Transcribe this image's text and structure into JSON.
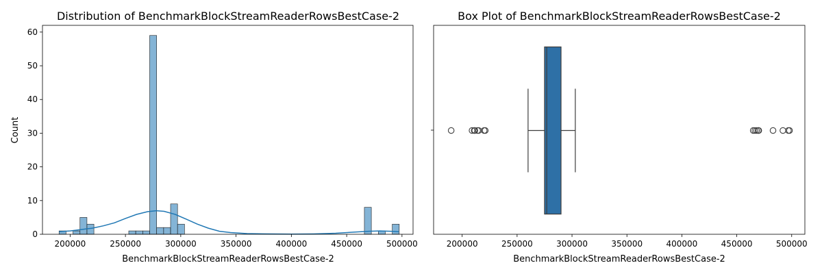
{
  "chart_data": [
    {
      "type": "bar",
      "subtype": "histogram-with-kde",
      "title": "Distribution of BenchmarkBlockStreamReaderRowsBestCase-2",
      "xlabel": "BenchmarkBlockStreamReaderRowsBestCase-2",
      "ylabel": "Count",
      "xlim": [
        175000,
        510000
      ],
      "ylim": [
        0,
        62
      ],
      "xticks": [
        "200000",
        "250000",
        "300000",
        "350000",
        "400000",
        "450000",
        "500000"
      ],
      "yticks": [
        "0",
        "10",
        "20",
        "30",
        "40",
        "50",
        "60"
      ],
      "bar_color": "#1f77b4",
      "bars": [
        {
          "x0": 190000,
          "x1": 196300,
          "count": 1
        },
        {
          "x0": 196300,
          "x1": 202600,
          "count": 0
        },
        {
          "x0": 202600,
          "x1": 208900,
          "count": 1
        },
        {
          "x0": 208900,
          "x1": 215200,
          "count": 5
        },
        {
          "x0": 215200,
          "x1": 221500,
          "count": 3
        },
        {
          "x0": 253000,
          "x1": 259300,
          "count": 1
        },
        {
          "x0": 259300,
          "x1": 265600,
          "count": 1
        },
        {
          "x0": 265600,
          "x1": 271900,
          "count": 1
        },
        {
          "x0": 271900,
          "x1": 278200,
          "count": 59
        },
        {
          "x0": 278200,
          "x1": 284500,
          "count": 2
        },
        {
          "x0": 284500,
          "x1": 290800,
          "count": 2
        },
        {
          "x0": 290800,
          "x1": 297100,
          "count": 9
        },
        {
          "x0": 297100,
          "x1": 303400,
          "count": 3
        },
        {
          "x0": 466000,
          "x1": 472300,
          "count": 8
        },
        {
          "x0": 478600,
          "x1": 484900,
          "count": 1
        },
        {
          "x0": 491200,
          "x1": 497500,
          "count": 3
        }
      ],
      "kde": [
        [
          190000,
          0.8
        ],
        [
          200000,
          1.0
        ],
        [
          210000,
          1.4
        ],
        [
          220000,
          1.8
        ],
        [
          230000,
          2.5
        ],
        [
          240000,
          3.4
        ],
        [
          250000,
          4.7
        ],
        [
          260000,
          5.9
        ],
        [
          270000,
          6.7
        ],
        [
          278000,
          7.0
        ],
        [
          285000,
          6.8
        ],
        [
          295000,
          5.9
        ],
        [
          305000,
          4.5
        ],
        [
          315000,
          3.0
        ],
        [
          325000,
          1.8
        ],
        [
          335000,
          0.9
        ],
        [
          345000,
          0.5
        ],
        [
          360000,
          0.2
        ],
        [
          380000,
          0.1
        ],
        [
          400000,
          0.05
        ],
        [
          420000,
          0.1
        ],
        [
          440000,
          0.3
        ],
        [
          455000,
          0.6
        ],
        [
          470000,
          0.9
        ],
        [
          480000,
          1.0
        ],
        [
          490000,
          0.9
        ],
        [
          497000,
          0.75
        ]
      ]
    },
    {
      "type": "box",
      "title": "Box Plot of BenchmarkBlockStreamReaderRowsBestCase-2",
      "xlabel": "BenchmarkBlockStreamReaderRowsBestCase-2",
      "xlim": [
        174000,
        512000
      ],
      "xticks": [
        "200000",
        "250000",
        "300000",
        "350000",
        "400000",
        "450000",
        "500000"
      ],
      "box_color": "#2e70a6",
      "whisker_low": 260000,
      "q1": 275000,
      "median": 277000,
      "q3": 290000,
      "whisker_high": 303000,
      "outliers": [
        190000,
        209000,
        211000,
        211500,
        214000,
        215000,
        220000,
        221000,
        465000,
        466500,
        468000,
        469500,
        470000,
        483000,
        492000,
        497000,
        498000
      ]
    }
  ]
}
